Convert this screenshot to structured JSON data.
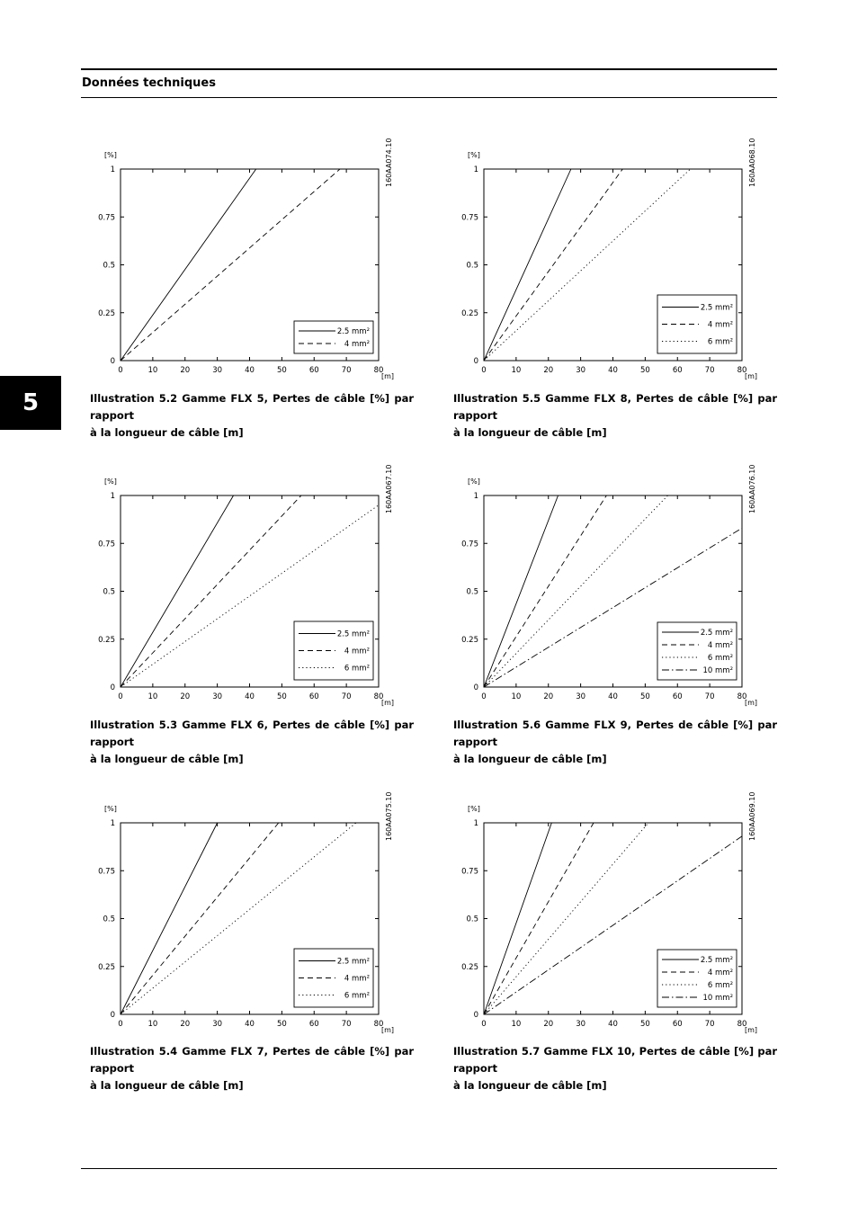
{
  "header": {
    "title": "Données techniques"
  },
  "chapter": {
    "number": "5"
  },
  "figures": [
    {
      "code": "160AA074.10",
      "caption_line1": "Illustration 5.2 Gamme FLX 5, Pertes de câble [%] par rapport",
      "caption_line2": "à la longueur de câble [m]"
    },
    {
      "code": "160AA068.10",
      "caption_line1": "Illustration 5.5 Gamme FLX 8, Pertes de câble [%] par rapport",
      "caption_line2": "à la longueur de câble [m]"
    },
    {
      "code": "160AA067.10",
      "caption_line1": "Illustration 5.3 Gamme FLX 6, Pertes de câble [%] par rapport",
      "caption_line2": "à la longueur de câble [m]"
    },
    {
      "code": "160AA076.10",
      "caption_line1": "Illustration 5.6 Gamme FLX 9, Pertes de câble [%] par rapport",
      "caption_line2": "à la longueur de câble [m]"
    },
    {
      "code": "160AA075.10",
      "caption_line1": "Illustration 5.4 Gamme FLX 7, Pertes de câble [%] par rapport",
      "caption_line2": "à la longueur de câble [m]"
    },
    {
      "code": "160AA069.10",
      "caption_line1": "Illustration 5.7 Gamme FLX 10, Pertes de câble [%] par rapport",
      "caption_line2": "à la longueur de câble [m]"
    }
  ],
  "chart_data": [
    {
      "type": "line",
      "title": "",
      "xlabel": "[m]",
      "ylabel": "[%]",
      "xlim": [
        0,
        80
      ],
      "ylim": [
        0,
        1
      ],
      "x_ticks": [
        "0",
        "10",
        "20",
        "30",
        "40",
        "50",
        "60",
        "70",
        "80"
      ],
      "y_ticks": [
        "0",
        "0.25",
        "0.5",
        "0.75",
        "1"
      ],
      "grid": false,
      "legend_position": "bottom-right",
      "series": [
        {
          "name": "2.5 mm²",
          "style": "solid",
          "x": [
            0,
            42
          ],
          "y": [
            0,
            1
          ]
        },
        {
          "name": "4 mm²",
          "style": "dashed",
          "x": [
            0,
            68
          ],
          "y": [
            0,
            1
          ]
        }
      ]
    },
    {
      "type": "line",
      "title": "",
      "xlabel": "[m]",
      "ylabel": "[%]",
      "xlim": [
        0,
        80
      ],
      "ylim": [
        0,
        1
      ],
      "x_ticks": [
        "0",
        "10",
        "20",
        "30",
        "40",
        "50",
        "60",
        "70",
        "80"
      ],
      "y_ticks": [
        "0",
        "0.25",
        "0.5",
        "0.75",
        "1"
      ],
      "grid": false,
      "legend_position": "bottom-right",
      "series": [
        {
          "name": "2.5 mm²",
          "style": "solid",
          "x": [
            0,
            27
          ],
          "y": [
            0,
            1
          ]
        },
        {
          "name": "4 mm²",
          "style": "dashed",
          "x": [
            0,
            43
          ],
          "y": [
            0,
            1
          ]
        },
        {
          "name": "6 mm²",
          "style": "dotted",
          "x": [
            0,
            64
          ],
          "y": [
            0,
            1
          ]
        }
      ]
    },
    {
      "type": "line",
      "title": "",
      "xlabel": "[m]",
      "ylabel": "[%]",
      "xlim": [
        0,
        80
      ],
      "ylim": [
        0,
        1
      ],
      "x_ticks": [
        "0",
        "10",
        "20",
        "30",
        "40",
        "50",
        "60",
        "70",
        "80"
      ],
      "y_ticks": [
        "0",
        "0.25",
        "0.5",
        "0.75",
        "1"
      ],
      "grid": false,
      "legend_position": "bottom-right",
      "series": [
        {
          "name": "2.5 mm²",
          "style": "solid",
          "x": [
            0,
            35
          ],
          "y": [
            0,
            1
          ]
        },
        {
          "name": "4 mm²",
          "style": "dashed",
          "x": [
            0,
            56
          ],
          "y": [
            0,
            1
          ]
        },
        {
          "name": "6 mm²",
          "style": "dotted",
          "x": [
            0,
            80
          ],
          "y": [
            0,
            0.95
          ]
        }
      ]
    },
    {
      "type": "line",
      "title": "",
      "xlabel": "[m]",
      "ylabel": "[%]",
      "xlim": [
        0,
        80
      ],
      "ylim": [
        0,
        1
      ],
      "x_ticks": [
        "0",
        "10",
        "20",
        "30",
        "40",
        "50",
        "60",
        "70",
        "80"
      ],
      "y_ticks": [
        "0",
        "0.25",
        "0.5",
        "0.75",
        "1"
      ],
      "grid": false,
      "legend_position": "bottom-right",
      "series": [
        {
          "name": "2.5 mm²",
          "style": "solid",
          "x": [
            0,
            23
          ],
          "y": [
            0,
            1
          ]
        },
        {
          "name": "4 mm²",
          "style": "dashed",
          "x": [
            0,
            38
          ],
          "y": [
            0,
            1
          ]
        },
        {
          "name": "6 mm²",
          "style": "dotted",
          "x": [
            0,
            57
          ],
          "y": [
            0,
            1
          ]
        },
        {
          "name": "10 mm²",
          "style": "dashdot",
          "x": [
            0,
            80
          ],
          "y": [
            0,
            0.83
          ]
        }
      ]
    },
    {
      "type": "line",
      "title": "",
      "xlabel": "[m]",
      "ylabel": "[%]",
      "xlim": [
        0,
        80
      ],
      "ylim": [
        0,
        1
      ],
      "x_ticks": [
        "0",
        "10",
        "20",
        "30",
        "40",
        "50",
        "60",
        "70",
        "80"
      ],
      "y_ticks": [
        "0",
        "0.25",
        "0.5",
        "0.75",
        "1"
      ],
      "grid": false,
      "legend_position": "bottom-right",
      "series": [
        {
          "name": "2.5 mm²",
          "style": "solid",
          "x": [
            0,
            30
          ],
          "y": [
            0,
            1
          ]
        },
        {
          "name": "4 mm²",
          "style": "dashed",
          "x": [
            0,
            49
          ],
          "y": [
            0,
            1
          ]
        },
        {
          "name": "6 mm²",
          "style": "dotted",
          "x": [
            0,
            73
          ],
          "y": [
            0,
            1
          ]
        }
      ]
    },
    {
      "type": "line",
      "title": "",
      "xlabel": "[m]",
      "ylabel": "[%]",
      "xlim": [
        0,
        80
      ],
      "ylim": [
        0,
        1
      ],
      "x_ticks": [
        "0",
        "10",
        "20",
        "30",
        "40",
        "50",
        "60",
        "70",
        "80"
      ],
      "y_ticks": [
        "0",
        "0.25",
        "0.5",
        "0.75",
        "1"
      ],
      "grid": false,
      "legend_position": "bottom-right",
      "series": [
        {
          "name": "2.5 mm²",
          "style": "solid",
          "x": [
            0,
            21
          ],
          "y": [
            0,
            1
          ]
        },
        {
          "name": "4 mm²",
          "style": "dashed",
          "x": [
            0,
            34
          ],
          "y": [
            0,
            1
          ]
        },
        {
          "name": "6 mm²",
          "style": "dotted",
          "x": [
            0,
            51
          ],
          "y": [
            0,
            1
          ]
        },
        {
          "name": "10 mm²",
          "style": "dashdot",
          "x": [
            0,
            80
          ],
          "y": [
            0,
            0.93
          ]
        }
      ]
    }
  ]
}
